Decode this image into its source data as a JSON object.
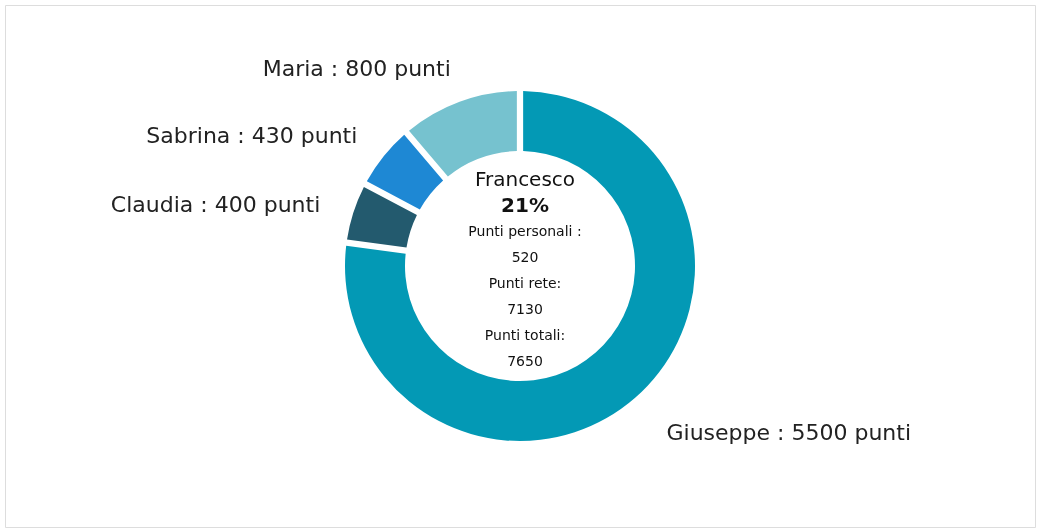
{
  "chart_data": {
    "type": "donut",
    "categories": [
      "Giuseppe : 5500 punti",
      "Claudia : 400 punti",
      "Sabrina : 430 punti",
      "Maria : 800 punti"
    ],
    "values": [
      5500,
      400,
      430,
      800
    ],
    "colors": [
      "#0399b5",
      "#235a6e",
      "#1e88d4",
      "#76c2cf"
    ],
    "annotations": [
      "Francesco",
      "21%",
      "Punti personali :",
      "520",
      "Punti rete:",
      "7130",
      "Punti totali:",
      "7650"
    ]
  }
}
